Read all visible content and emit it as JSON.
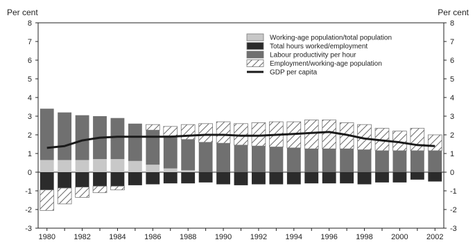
{
  "chart_data": {
    "type": "bar",
    "stacked": true,
    "y_unit_left": "Per cent",
    "y_unit_right": "Per cent",
    "ylim": [
      -3,
      8
    ],
    "yticks": [
      -3,
      -2,
      -1,
      0,
      1,
      2,
      3,
      4,
      5,
      6,
      7,
      8
    ],
    "x": [
      1980,
      1981,
      1982,
      1983,
      1984,
      1985,
      1986,
      1987,
      1988,
      1989,
      1990,
      1991,
      1992,
      1993,
      1994,
      1995,
      1996,
      1997,
      1998,
      1999,
      2000,
      2001,
      2002
    ],
    "x_tick_labels": [
      "1980",
      "1982",
      "1984",
      "1986",
      "1988",
      "1990",
      "1992",
      "1994",
      "1996",
      "1998",
      "2000",
      "2002"
    ],
    "grid": false,
    "legend_position": "top-right",
    "series": [
      {
        "name": "Working-age population/total population",
        "kind": "bar",
        "color": "#c8c8c8",
        "values": [
          0.65,
          0.65,
          0.65,
          0.7,
          0.7,
          0.6,
          0.4,
          0.2,
          0.1,
          0,
          0,
          0,
          0,
          0,
          0,
          0,
          0,
          0,
          0,
          0,
          0,
          0,
          0
        ]
      },
      {
        "name": "Total hours worked/employment",
        "kind": "bar",
        "color": "#2b2b2b",
        "values": [
          -0.95,
          -0.85,
          -0.8,
          -0.75,
          -0.75,
          -0.7,
          -0.65,
          -0.6,
          -0.6,
          -0.55,
          -0.65,
          -0.7,
          -0.65,
          -0.65,
          -0.65,
          -0.6,
          -0.6,
          -0.6,
          -0.65,
          -0.55,
          -0.55,
          -0.4,
          -0.5
        ]
      },
      {
        "name": "Labour productivity per hour",
        "kind": "bar",
        "color": "#707070",
        "values": [
          2.75,
          2.55,
          2.4,
          2.3,
          2.2,
          2.0,
          1.85,
          1.75,
          1.65,
          1.6,
          1.55,
          1.45,
          1.4,
          1.35,
          1.3,
          1.25,
          1.25,
          1.25,
          1.2,
          1.15,
          1.15,
          1.15,
          1.15
        ]
      },
      {
        "name": "Employment/working-age population",
        "kind": "bar",
        "color": "#ffffff",
        "values": [
          -1.1,
          -0.85,
          -0.55,
          -0.35,
          -0.2,
          0,
          0.3,
          0.5,
          0.8,
          1.0,
          1.15,
          1.15,
          1.25,
          1.35,
          1.4,
          1.55,
          1.55,
          1.4,
          1.35,
          1.2,
          1.05,
          1.2,
          0.85
        ]
      },
      {
        "name": "GDP per capita",
        "kind": "line",
        "color": "#1a1a1a",
        "values": [
          1.3,
          1.4,
          1.7,
          1.85,
          1.9,
          1.9,
          1.9,
          1.9,
          1.95,
          2.0,
          2.0,
          1.95,
          1.95,
          2.0,
          2.05,
          2.1,
          2.15,
          2.0,
          1.8,
          1.7,
          1.6,
          1.45,
          1.4
        ]
      }
    ]
  }
}
